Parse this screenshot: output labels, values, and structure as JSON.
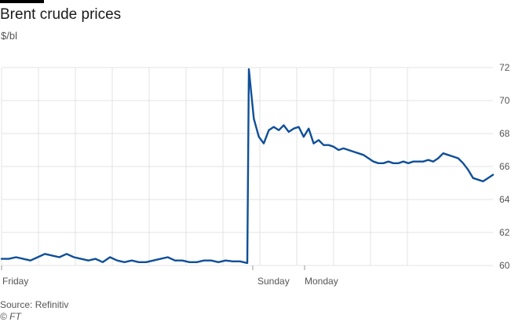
{
  "title": "Brent crude prices",
  "unit_label": "$/bl",
  "source": "Source: Refinitiv",
  "copyright": "© FT",
  "colors": {
    "line": "#0f4f99",
    "grid": "#e3e3e3",
    "axis_text": "#555555"
  },
  "chart_data": {
    "type": "line",
    "title": "Brent crude prices",
    "ylabel": "$/bl",
    "xlabel": "",
    "ylim": [
      60,
      72
    ],
    "y_ticks": [
      60,
      62,
      64,
      66,
      68,
      70,
      72
    ],
    "x_tick_labels": [
      "Friday",
      "Sunday",
      "Monday"
    ],
    "grid": true,
    "legend": "none",
    "series": [
      {
        "x_index": [
          0,
          1,
          2,
          3,
          4,
          5,
          6,
          7,
          8,
          9,
          10,
          11,
          12,
          13,
          14,
          15,
          16,
          17,
          18,
          19,
          20,
          21,
          22,
          23,
          24,
          25,
          26,
          27,
          28,
          29,
          30,
          31,
          32,
          33,
          34,
          35,
          36,
          37,
          38,
          39,
          40,
          41,
          42,
          43,
          44,
          45,
          46,
          47,
          48,
          49,
          50,
          51,
          52,
          53,
          54,
          55,
          56,
          57,
          58,
          59,
          60,
          61,
          62,
          63,
          64,
          65,
          66,
          67,
          68,
          69,
          70,
          71,
          72,
          73,
          74,
          75,
          76,
          77,
          78,
          79,
          80,
          81,
          82,
          83,
          84
        ],
        "values": [
          60.4,
          60.4,
          60.5,
          60.4,
          60.3,
          60.5,
          60.7,
          60.6,
          60.5,
          60.7,
          60.5,
          60.4,
          60.3,
          60.4,
          60.2,
          60.5,
          60.3,
          60.2,
          60.3,
          60.2,
          60.2,
          60.3,
          60.4,
          60.5,
          60.3,
          60.3,
          60.2,
          60.2,
          60.3,
          60.3,
          60.2,
          60.3,
          60.25,
          60.25,
          60.15,
          71.9,
          68.9,
          67.8,
          67.4,
          68.2,
          68.4,
          68.2,
          68.5,
          68.1,
          68.3,
          68.4,
          67.8,
          68.3,
          67.4,
          67.6,
          67.3,
          67.3,
          67.2,
          67.0,
          67.1,
          67.0,
          66.9,
          66.8,
          66.7,
          66.5,
          66.3,
          66.2,
          66.2,
          66.3,
          66.2,
          66.2,
          66.3,
          66.2,
          66.3,
          66.3,
          66.3,
          66.4,
          66.3,
          66.5,
          66.8,
          66.7,
          66.6,
          66.5,
          66.2,
          65.8,
          65.3,
          65.2,
          65.1,
          65.3,
          65.5
        ]
      }
    ]
  }
}
